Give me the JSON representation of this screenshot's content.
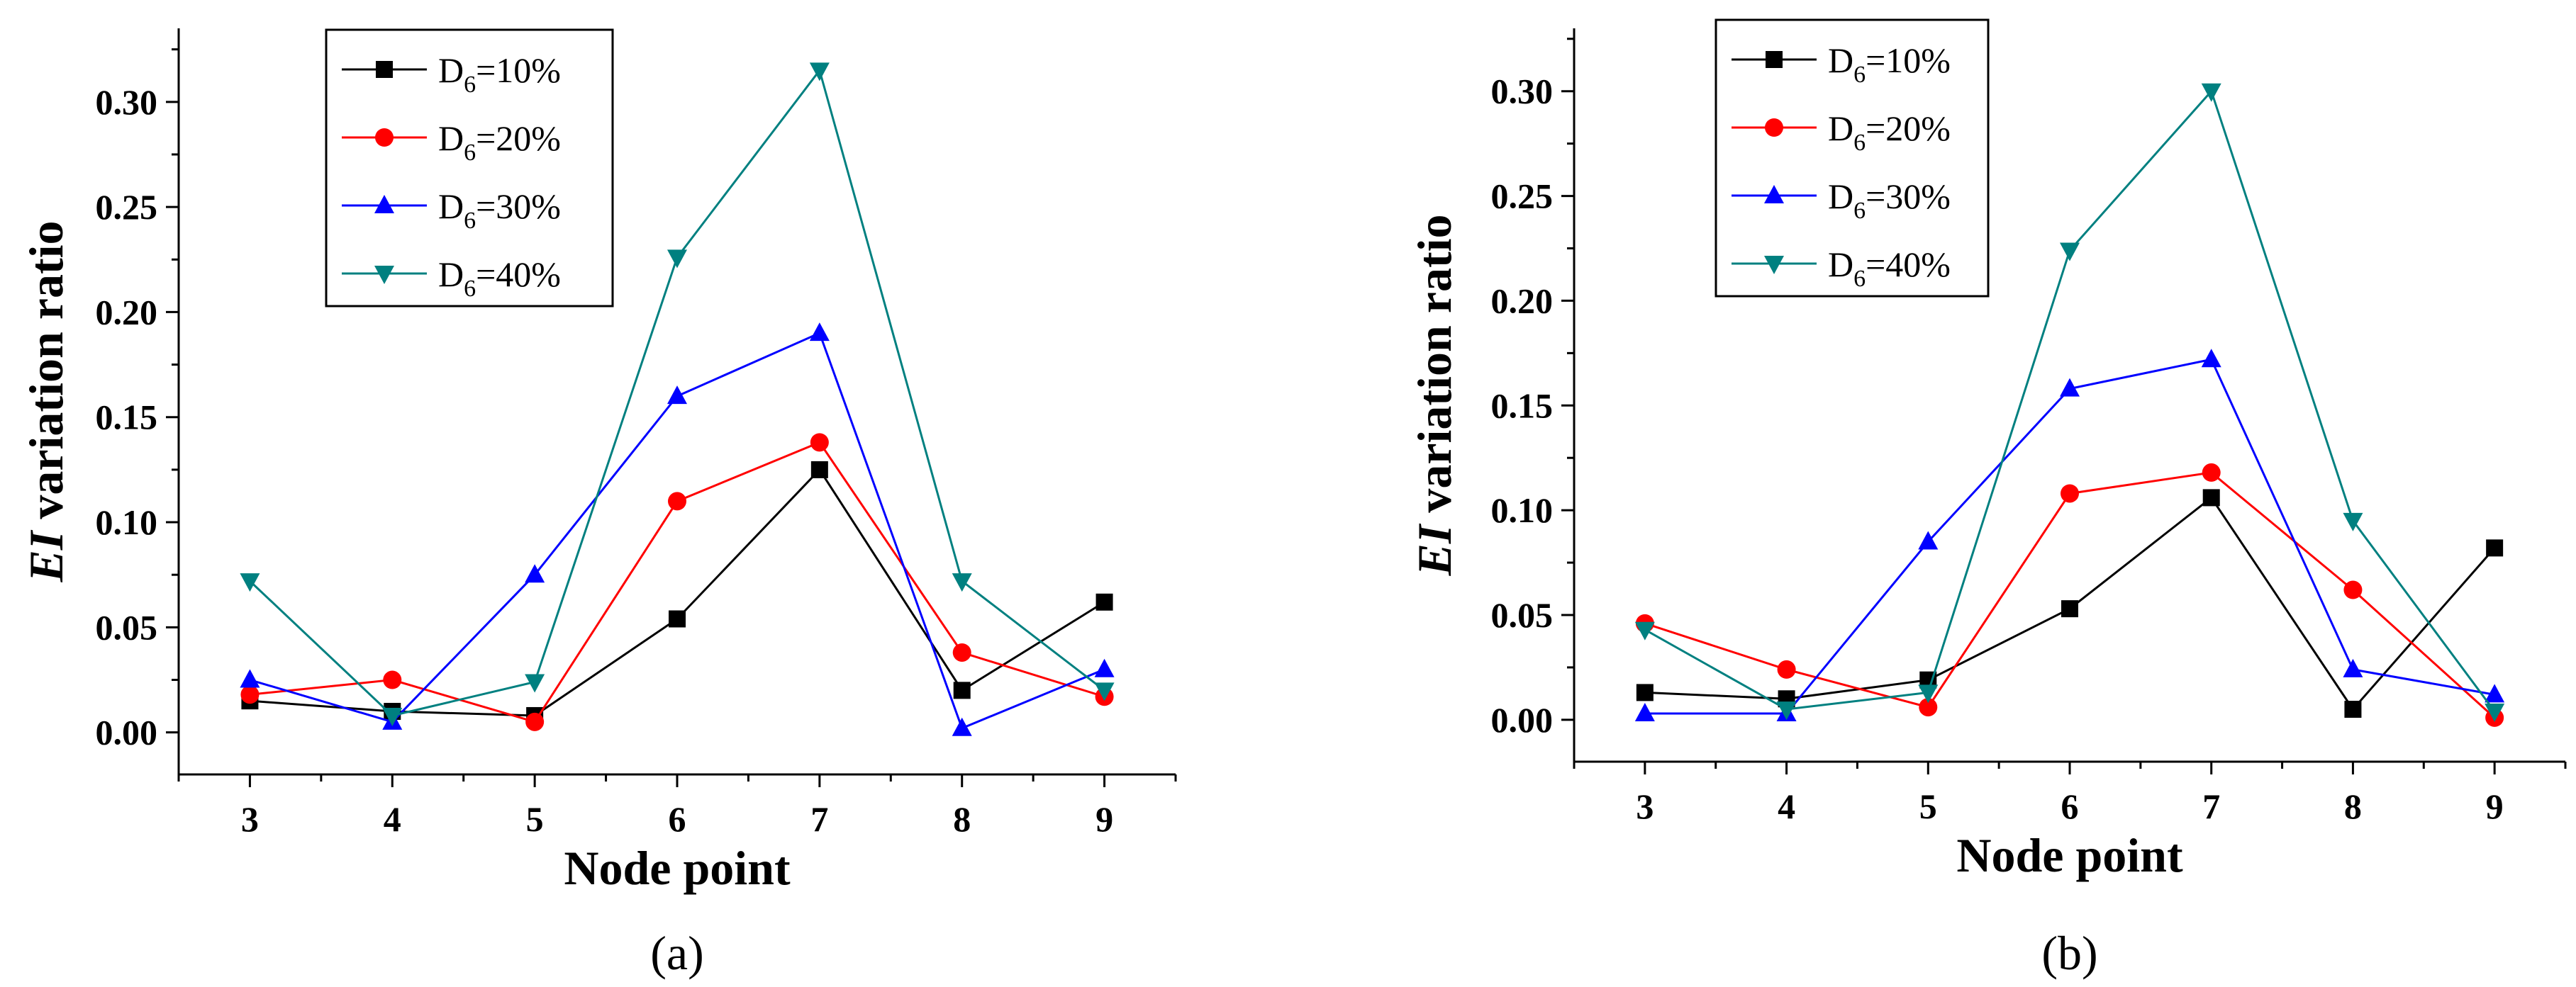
{
  "chart_data": [
    {
      "panel_label": "(a)",
      "type": "line",
      "xlabel": "Node point",
      "ylabel_italic": "EI",
      "ylabel_rest": " variation ratio",
      "categories": [
        "3",
        "4",
        "5",
        "6",
        "7",
        "8",
        "9"
      ],
      "x": [
        3,
        4,
        5,
        6,
        7,
        8,
        9
      ],
      "xlim": [
        2.5,
        9.5
      ],
      "ylim": [
        -0.02,
        0.335
      ],
      "yticks": [
        "0.00",
        "0.05",
        "0.10",
        "0.15",
        "0.20",
        "0.25",
        "0.30"
      ],
      "series": [
        {
          "name": "D6=10%",
          "label_main": "D",
          "label_sub": "6",
          "label_tail": "=10%",
          "color": "#000000",
          "marker": "square",
          "values": [
            0.015,
            0.01,
            0.008,
            0.054,
            0.125,
            0.02,
            0.062
          ]
        },
        {
          "name": "D6=20%",
          "label_main": "D",
          "label_sub": "6",
          "label_tail": "=20%",
          "color": "#ff0000",
          "marker": "circle",
          "values": [
            0.018,
            0.025,
            0.005,
            0.11,
            0.138,
            0.038,
            0.017
          ]
        },
        {
          "name": "D6=30%",
          "label_main": "D",
          "label_sub": "6",
          "label_tail": "=30%",
          "color": "#0000ff",
          "marker": "triangle-up",
          "values": [
            0.025,
            0.005,
            0.075,
            0.16,
            0.19,
            0.002,
            0.03
          ]
        },
        {
          "name": "D6=40%",
          "label_main": "D",
          "label_sub": "6",
          "label_tail": "=40%",
          "color": "#008080",
          "marker": "triangle-down",
          "values": [
            0.072,
            0.008,
            0.024,
            0.226,
            0.315,
            0.072,
            0.02
          ]
        }
      ]
    },
    {
      "panel_label": "(b)",
      "type": "line",
      "xlabel": "Node point",
      "ylabel_italic": "EI",
      "ylabel_rest": " variation ratio",
      "categories": [
        "3",
        "4",
        "5",
        "6",
        "7",
        "8",
        "9"
      ],
      "x": [
        3,
        4,
        5,
        6,
        7,
        8,
        9
      ],
      "xlim": [
        2.5,
        9.5
      ],
      "ylim": [
        -0.02,
        0.33
      ],
      "yticks": [
        "0.00",
        "0.05",
        "0.10",
        "0.15",
        "0.20",
        "0.25",
        "0.30"
      ],
      "series": [
        {
          "name": "D6=10%",
          "label_main": "D",
          "label_sub": "6",
          "label_tail": "=10%",
          "color": "#000000",
          "marker": "square",
          "values": [
            0.013,
            0.01,
            0.019,
            0.053,
            0.106,
            0.005,
            0.082
          ]
        },
        {
          "name": "D6=20%",
          "label_main": "D",
          "label_sub": "6",
          "label_tail": "=20%",
          "color": "#ff0000",
          "marker": "circle",
          "values": [
            0.046,
            0.024,
            0.006,
            0.108,
            0.118,
            0.062,
            0.001
          ]
        },
        {
          "name": "D6=30%",
          "label_main": "D",
          "label_sub": "6",
          "label_tail": "=30%",
          "color": "#0000ff",
          "marker": "triangle-up",
          "values": [
            0.003,
            0.003,
            0.085,
            0.158,
            0.172,
            0.024,
            0.012
          ]
        },
        {
          "name": "D6=40%",
          "label_main": "D",
          "label_sub": "6",
          "label_tail": "=40%",
          "color": "#008080",
          "marker": "triangle-down",
          "values": [
            0.043,
            0.005,
            0.013,
            0.224,
            0.3,
            0.095,
            0.004
          ]
        }
      ]
    }
  ]
}
